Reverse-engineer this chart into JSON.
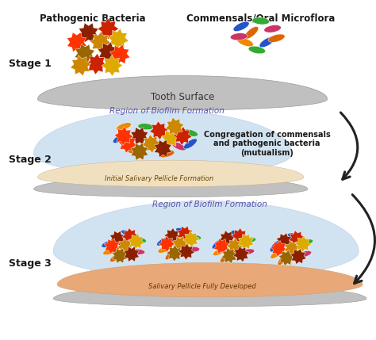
{
  "stage_labels": [
    "Stage 1",
    "Stage 2",
    "Stage 3"
  ],
  "label_pathogenic": "Pathogenic Bacteria",
  "label_commensals": "Commensals/Oral Microflora",
  "label_tooth": "Tooth Surface",
  "label_region2": "Region of Biofilm Formation",
  "label_region3": "Region of Biofilm Formation",
  "label_pellicle2": "Initial Salivary Pellicle Formation",
  "label_pellicle3": "Salivary Pellicle Fully Developed",
  "label_congregation": "Congregation of commensals\nand pathogenic bacteria\n(mutualism)",
  "bg_color": "#ffffff",
  "tooth_color": "#c0c0c0",
  "pellicle2_color": "#f0e0c0",
  "pellicle3_color": "#e8a878",
  "biofilm_color": "#cce0f0",
  "tooth3_color": "#c0c0c0",
  "arrow_color": "#222222",
  "text_color": "#1a1a1a",
  "region_label_color": "#5555aa",
  "path_colors": [
    "#8B2000",
    "#cc2200",
    "#ff3300",
    "#cc8800",
    "#ddaa00",
    "#996600"
  ],
  "comm_colors": [
    "#2255cc",
    "#33aa33",
    "#dd6600",
    "#cc3366",
    "#ee8800"
  ]
}
